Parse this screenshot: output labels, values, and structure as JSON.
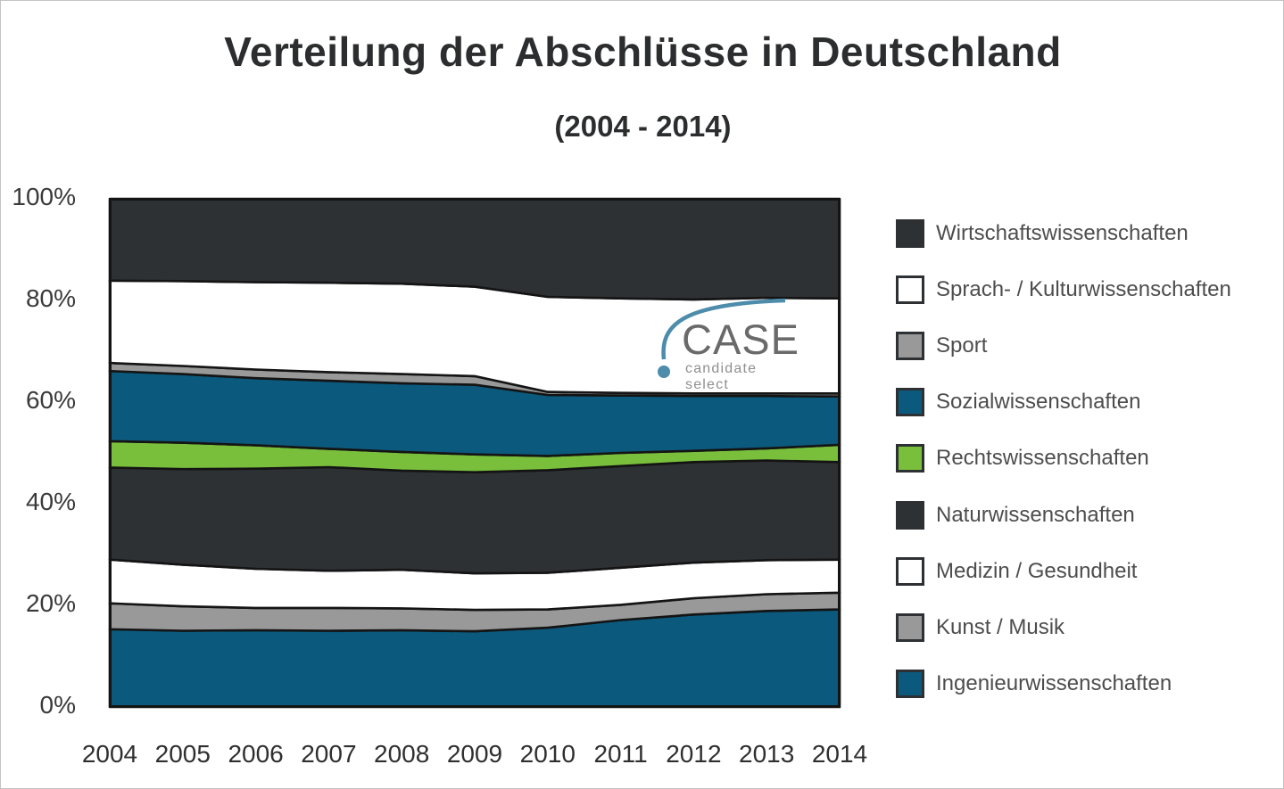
{
  "title": "Verteilung der Abschlüsse in Deutschland",
  "subtitle": "(2004 - 2014)",
  "logo": {
    "name": "CASE",
    "tagline": "candidate select",
    "accent_color": "#4d8cab",
    "name_color": "#6a6a6a"
  },
  "colors": {
    "dark": "#2e3134",
    "white": "#ffffff",
    "gray": "#999999",
    "blue": "#0b5a7d",
    "green": "#79bf3c",
    "outline": "#141414"
  },
  "y_axis": {
    "ticks": [
      "100%",
      "80%",
      "60%",
      "40%",
      "20%",
      "0%"
    ]
  },
  "x_axis": {
    "ticks": [
      "2004",
      "2005",
      "2006",
      "2007",
      "2008",
      "2009",
      "2010",
      "2011",
      "2012",
      "2013",
      "2014"
    ]
  },
  "legend": [
    {
      "label": "Wirtschaftswissenschaften",
      "color_key": "dark"
    },
    {
      "label": "Sprach- / Kulturwissenschaften",
      "color_key": "white"
    },
    {
      "label": "Sport",
      "color_key": "gray"
    },
    {
      "label": "Sozialwissenschaften",
      "color_key": "blue"
    },
    {
      "label": "Rechtswissenschaften",
      "color_key": "green"
    },
    {
      "label": "Naturwissenschaften",
      "color_key": "dark"
    },
    {
      "label": "Medizin / Gesundheit",
      "color_key": "white"
    },
    {
      "label": "Kunst / Musik",
      "color_key": "gray"
    },
    {
      "label": "Ingenieurwissenschaften",
      "color_key": "blue"
    }
  ],
  "chart_data": {
    "type": "area",
    "stacked": true,
    "units": "percent",
    "title": "Verteilung der Abschlüsse in Deutschland (2004 - 2014)",
    "xlabel": "",
    "ylabel": "",
    "ylim": [
      0,
      100
    ],
    "yticks_percent": [
      0,
      20,
      40,
      60,
      80,
      100
    ],
    "grid": false,
    "legend_position": "right",
    "x": [
      2004,
      2005,
      2006,
      2007,
      2008,
      2009,
      2010,
      2011,
      2012,
      2013,
      2014
    ],
    "stack_order": "bottom-to-top",
    "series": [
      {
        "id": "ingenieurwissenschaften",
        "name": "Ingenieurwissenschaften",
        "color_key": "blue",
        "values": [
          15.3,
          15.0,
          15.1,
          15.0,
          15.1,
          14.9,
          15.6,
          17.1,
          18.2,
          18.9,
          19.2
        ]
      },
      {
        "id": "kunst-musik",
        "name": "Kunst / Musik",
        "color_key": "gray",
        "values": [
          5.1,
          4.8,
          4.4,
          4.5,
          4.3,
          4.2,
          3.6,
          3.0,
          3.2,
          3.3,
          3.3
        ]
      },
      {
        "id": "medizin-gesundheit",
        "name": "Medizin / Gesundheit",
        "color_key": "white",
        "values": [
          8.6,
          8.2,
          7.7,
          7.3,
          7.6,
          7.2,
          7.2,
          7.3,
          7.0,
          6.7,
          6.5
        ]
      },
      {
        "id": "naturwissenschaften",
        "name": "Naturwissenschaften",
        "color_key": "dark",
        "values": [
          18.1,
          18.8,
          19.7,
          20.4,
          19.5,
          19.9,
          20.2,
          20.0,
          19.8,
          19.6,
          19.2
        ]
      },
      {
        "id": "rechtswissenschaften",
        "name": "Rechtswissenschaften",
        "color_key": "green",
        "values": [
          5.2,
          5.2,
          4.6,
          3.6,
          3.7,
          3.5,
          2.8,
          2.6,
          2.2,
          2.4,
          3.4
        ]
      },
      {
        "id": "sozialwissenschaften",
        "name": "Sozialwissenschaften",
        "color_key": "blue",
        "values": [
          13.8,
          13.5,
          13.2,
          13.4,
          13.5,
          13.7,
          12.0,
          11.3,
          10.8,
          10.3,
          9.5
        ]
      },
      {
        "id": "sport",
        "name": "Sport",
        "color_key": "gray",
        "values": [
          1.6,
          1.6,
          1.7,
          1.7,
          1.8,
          1.7,
          0.6,
          0.5,
          0.5,
          0.5,
          0.6
        ]
      },
      {
        "id": "sprach-kulturwissenschaften",
        "name": "Sprach- / Kulturwissenschaften",
        "color_key": "white",
        "values": [
          16.2,
          16.7,
          17.2,
          17.6,
          17.8,
          17.6,
          18.7,
          18.6,
          18.5,
          18.8,
          18.7
        ]
      },
      {
        "id": "wirtschaftswissenschaften",
        "name": "Wirtschaftswissenschaften",
        "color_key": "dark",
        "values": [
          16.1,
          16.2,
          16.4,
          16.5,
          16.7,
          17.3,
          19.3,
          19.6,
          19.8,
          19.5,
          19.6
        ]
      }
    ]
  }
}
